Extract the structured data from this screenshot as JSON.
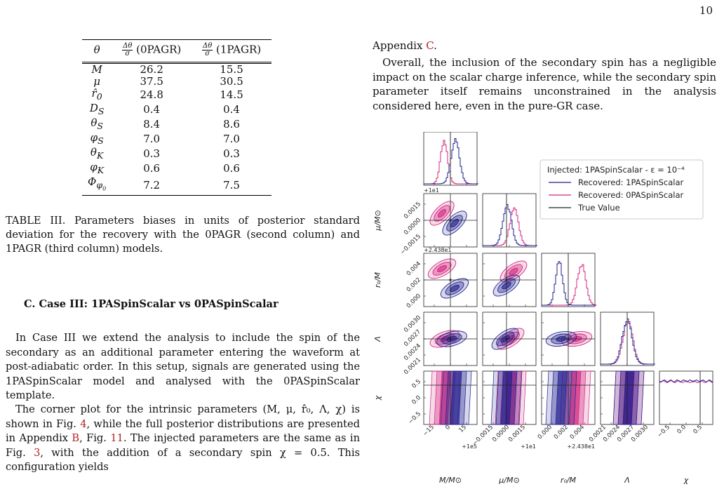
{
  "page_number": "10",
  "table": {
    "headers": [
      "θ",
      "Δθ/σ (0PAGR)",
      "Δθ/σ (1PAGR)"
    ],
    "rows": [
      {
        "param": "M",
        "v0": "26.2",
        "v1": "15.5"
      },
      {
        "param": "μ",
        "v0": "37.5",
        "v1": "30.5"
      },
      {
        "param": "r̂₀",
        "v0": "24.8",
        "v1": "14.5"
      },
      {
        "param": "D_S",
        "v0": "0.4",
        "v1": "0.4"
      },
      {
        "param": "θ_S",
        "v0": "8.4",
        "v1": "8.6"
      },
      {
        "param": "φ_S",
        "v0": "7.0",
        "v1": "7.0"
      },
      {
        "param": "θ_K",
        "v0": "0.3",
        "v1": "0.3"
      },
      {
        "param": "φ_K",
        "v0": "0.6",
        "v1": "0.6"
      },
      {
        "param": "Φ_φ0",
        "v0": "7.2",
        "v1": "7.5"
      }
    ]
  },
  "caption": "TABLE III. Parameters biases in units of posterior standard deviation for the recovery with the 0PAGR (second column) and 1PAGR (third column) models.",
  "section_heading": "C.   Case III: 1PASpinScalar vs 0PASpinScalar",
  "para1": "In Case III we extend the analysis to include the spin of the secondary as an additional parameter entering the waveform at post-adiabatic order. In this setup, signals are generated using the 1PASpinScalar model and analysed with the 0PASpinScalar template.",
  "para2": {
    "a": "The corner plot for the intrinsic parameters (M, μ, r̂₀, Λ, χ) is shown in Fig. ",
    "ref1": "4",
    "b": ", while the full posterior distributions are presented in Appendix ",
    "ref2": "B",
    "c": ", Fig. ",
    "ref3": "11",
    "d": ". The injected parameters are the same as in Fig. ",
    "ref4": "3",
    "e": ", with the addition of a secondary spin χ = 0.5. This configuration yields"
  },
  "right_top": {
    "a": "Appendix ",
    "ref": "C",
    "b": "."
  },
  "right_para": "Overall, the inclusion of the secondary spin has a negligible impact on the scalar charge inference, while the secondary spin parameter itself remains unconstrained in the analysis considered here, even in the pure-GR case.",
  "figure": {
    "legend_title": "Injected: 1PASpinScalar - ε = 10⁻⁴",
    "legend_items": [
      {
        "label": "Recovered: 1PASpinScalar",
        "color": "#1f1f8f"
      },
      {
        "label": "Recovered: 0PASpinScalar",
        "color": "#d4267f"
      },
      {
        "label": "True Value",
        "color": "#222222"
      }
    ],
    "offsets": {
      "mu": "+1e1",
      "r0": "+2.438e1",
      "M_x": "+1e5",
      "mu_x": "+1e1",
      "r0_x": "+2.438e1"
    },
    "ylabels": [
      "μ/M⊙",
      "r₀/M",
      "Λ",
      "χ"
    ],
    "xlabels": [
      "M/M⊙",
      "μ/M⊙",
      "r₀/M",
      "Λ",
      "χ"
    ],
    "ticks": {
      "M": [
        "−15",
        "0",
        "15"
      ],
      "mu": [
        "−0.0015",
        "0.0000",
        "0.0015"
      ],
      "r0": [
        "0.000",
        "0.002",
        "0.004"
      ],
      "lambda": [
        "0.0021",
        "0.0024",
        "0.0027",
        "0.0030"
      ],
      "chi": [
        "−0.5",
        "0.0",
        "0.5"
      ]
    },
    "colors": {
      "blue": "#1f1f8f",
      "pink": "#d4267f",
      "truth": "#222222"
    }
  }
}
